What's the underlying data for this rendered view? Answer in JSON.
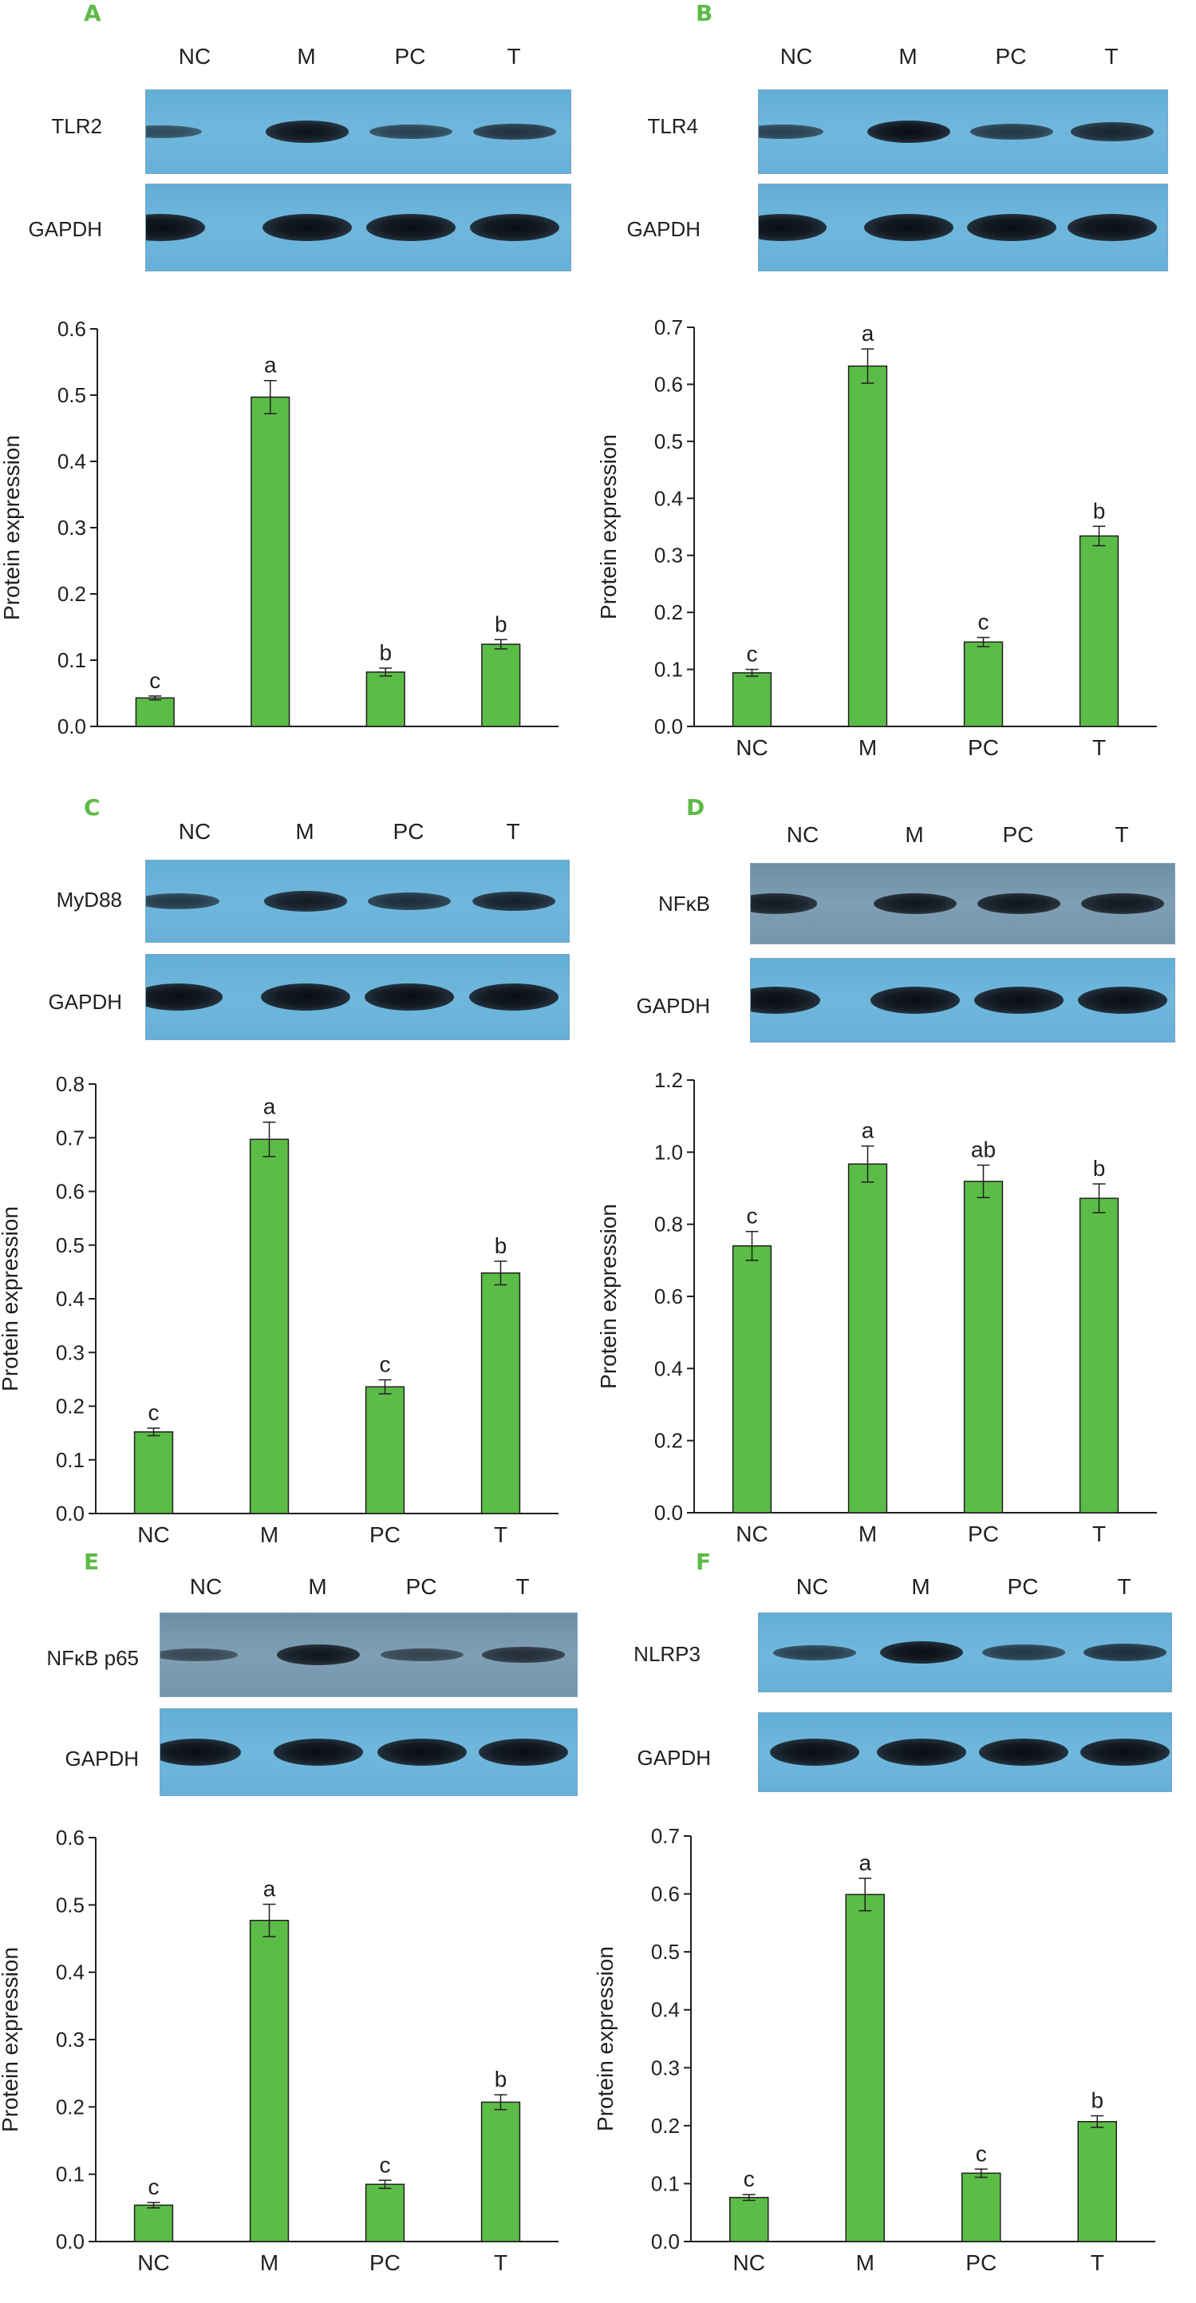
{
  "lanes": [
    "NC",
    "M",
    "PC",
    "T"
  ],
  "loading_label": "GAPDH",
  "colors": {
    "bar": "#5bbd47",
    "panel_letter": "#5dba47",
    "blot_bg": "#68b2da"
  },
  "chart_data": [
    {
      "panel": "A",
      "type": "bar",
      "protein": "TLR2",
      "categories": [
        "NC",
        "M",
        "PC",
        "T"
      ],
      "values": [
        0.043,
        0.497,
        0.082,
        0.124
      ],
      "errors": [
        0.003,
        0.025,
        0.006,
        0.007
      ],
      "sig": [
        "c",
        "a",
        "b",
        "b"
      ],
      "ylabel": "Protein expression",
      "ylim": [
        0,
        0.6
      ],
      "yticks": [
        "0.0",
        "0.1",
        "0.2",
        "0.3",
        "0.4",
        "0.5",
        "0.6"
      ],
      "band_strength": [
        0.35,
        0.95,
        0.45,
        0.6
      ],
      "show_xticks": false
    },
    {
      "panel": "B",
      "type": "bar",
      "protein": "TLR4",
      "categories": [
        "NC",
        "M",
        "PC",
        "T"
      ],
      "values": [
        0.094,
        0.632,
        0.148,
        0.334
      ],
      "errors": [
        0.006,
        0.03,
        0.008,
        0.017
      ],
      "sig": [
        "c",
        "a",
        "c",
        "b"
      ],
      "ylabel": "Protein expression",
      "ylim": [
        0,
        0.7
      ],
      "yticks": [
        "0.0",
        "0.1",
        "0.2",
        "0.3",
        "0.4",
        "0.5",
        "0.6",
        "0.7"
      ],
      "band_strength": [
        0.45,
        1.0,
        0.55,
        0.75
      ],
      "show_xticks": true
    },
    {
      "panel": "C",
      "type": "bar",
      "protein": "MyD88",
      "categories": [
        "NC",
        "M",
        "PC",
        "T"
      ],
      "values": [
        0.152,
        0.697,
        0.236,
        0.448
      ],
      "errors": [
        0.007,
        0.032,
        0.013,
        0.022
      ],
      "sig": [
        "c",
        "a",
        "c",
        "b"
      ],
      "ylabel": "Protein expression",
      "ylim": [
        0,
        0.8
      ],
      "yticks": [
        "0.0",
        "0.1",
        "0.2",
        "0.3",
        "0.4",
        "0.5",
        "0.6",
        "0.7",
        "0.8"
      ],
      "band_strength": [
        0.55,
        0.85,
        0.65,
        0.8
      ],
      "show_xticks": true
    },
    {
      "panel": "D",
      "type": "bar",
      "protein": "NFκB",
      "categories": [
        "NC",
        "M",
        "PC",
        "T"
      ],
      "values": [
        0.74,
        0.967,
        0.919,
        0.872
      ],
      "errors": [
        0.04,
        0.05,
        0.045,
        0.04
      ],
      "sig": [
        "c",
        "a",
        "ab",
        "b"
      ],
      "ylabel": "Protein expression",
      "ylim": [
        0,
        1.2
      ],
      "yticks": [
        "0.0",
        "0.2",
        "0.4",
        "0.6",
        "0.8",
        "1.0",
        "1.2"
      ],
      "band_strength": [
        0.85,
        0.9,
        0.9,
        0.88
      ],
      "show_xticks": true
    },
    {
      "panel": "E",
      "type": "bar",
      "protein": "NFκB p65",
      "categories": [
        "NC",
        "M",
        "PC",
        "T"
      ],
      "values": [
        0.054,
        0.477,
        0.085,
        0.207
      ],
      "errors": [
        0.004,
        0.024,
        0.006,
        0.011
      ],
      "sig": [
        "c",
        "a",
        "c",
        "b"
      ],
      "ylabel": "Protein expression",
      "ylim": [
        0,
        0.6
      ],
      "yticks": [
        "0.0",
        "0.1",
        "0.2",
        "0.3",
        "0.4",
        "0.5",
        "0.6"
      ],
      "band_strength": [
        0.3,
        0.9,
        0.35,
        0.6
      ],
      "show_xticks": true
    },
    {
      "panel": "F",
      "type": "bar",
      "protein": "NLRP3",
      "categories": [
        "NC",
        "M",
        "PC",
        "T"
      ],
      "values": [
        0.076,
        0.599,
        0.118,
        0.207
      ],
      "errors": [
        0.005,
        0.028,
        0.007,
        0.01
      ],
      "sig": [
        "c",
        "a",
        "c",
        "b"
      ],
      "ylabel": "Protein expression",
      "ylim": [
        0,
        0.7
      ],
      "yticks": [
        "0.0",
        "0.1",
        "0.2",
        "0.3",
        "0.4",
        "0.5",
        "0.6",
        "0.7"
      ],
      "band_strength": [
        0.5,
        1.0,
        0.55,
        0.65
      ],
      "show_xticks": true
    }
  ]
}
